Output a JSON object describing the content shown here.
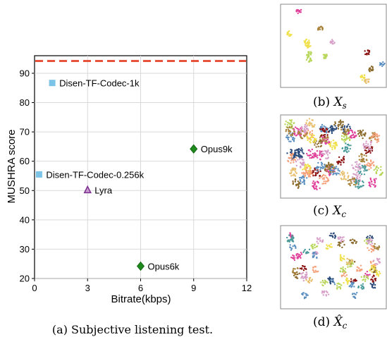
{
  "chart_data": {
    "type": "scatter",
    "xlabel": "Bitrate(kbps)",
    "ylabel": "MUSHRA score",
    "xlim": [
      0,
      12
    ],
    "ylim": [
      20,
      96
    ],
    "x_ticks": [
      "0",
      "3",
      "6",
      "9",
      "12"
    ],
    "y_ticks": [
      "20",
      "30",
      "40",
      "50",
      "60",
      "70",
      "80",
      "90"
    ],
    "grid": true,
    "reference_line": {
      "y": 94.2,
      "style": "dashed",
      "color": "#e8533b"
    },
    "points": [
      {
        "label": "Disen-TF-Codec-1k",
        "x": 1.0,
        "y": 86.7,
        "marker": "square",
        "color": "#7cc3e8"
      },
      {
        "label": "Disen-TF-Codec-0.256k",
        "x": 0.256,
        "y": 55.5,
        "marker": "square",
        "color": "#7cc3e8"
      },
      {
        "label": "Lyra",
        "x": 3.0,
        "y": 50.2,
        "marker": "triangle",
        "color": "#7b2d8e"
      },
      {
        "label": "Opus9k",
        "x": 9.0,
        "y": 64.2,
        "marker": "diamond",
        "color": "#1e8a1e"
      },
      {
        "label": "Opus6k",
        "x": 6.0,
        "y": 24.2,
        "marker": "diamond",
        "color": "#1e8a1e"
      }
    ]
  },
  "captions": {
    "a": "(a)  Subjective listening test.",
    "b_prefix": "(b) ",
    "b_math": "X",
    "b_sub": "s",
    "c_prefix": "(c) ",
    "c_math": "X",
    "c_sub": "c",
    "d_prefix": "(d) ",
    "d_math": "X̂",
    "d_sub": "c"
  },
  "panel_colors": [
    "#e0409a",
    "#f0e04a",
    "#b8d65a",
    "#a8823a",
    "#8a1010",
    "#2a4a7a",
    "#5a8fc0",
    "#d7a0c8",
    "#f6a07a",
    "#8a6a2a",
    "#4a9a9a",
    "#e8c070"
  ]
}
